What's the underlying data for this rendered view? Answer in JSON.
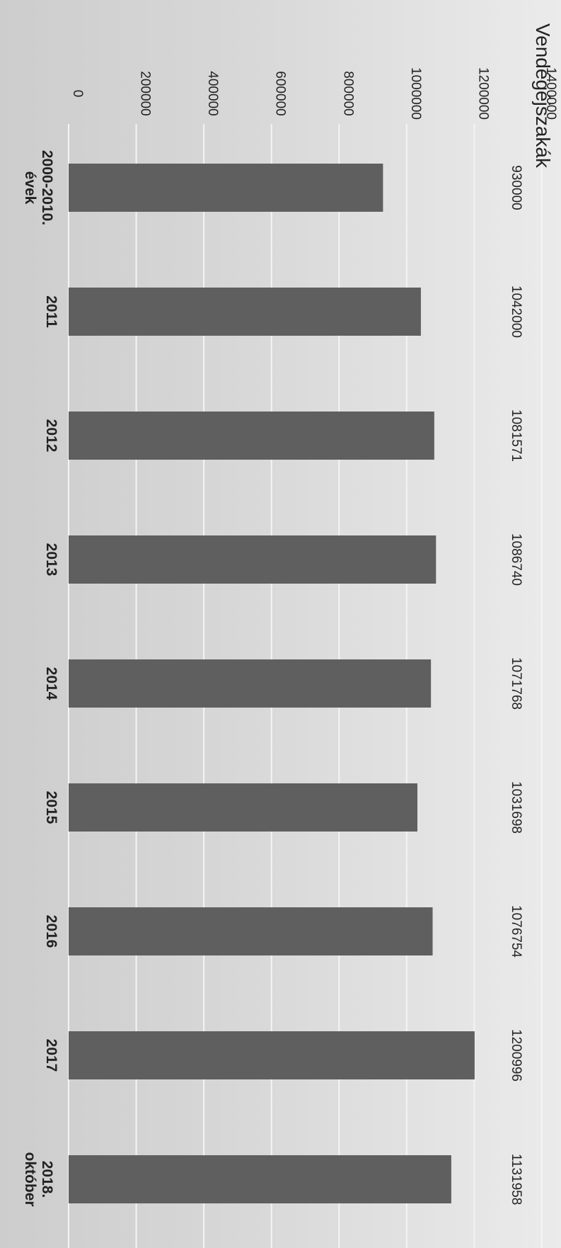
{
  "chart_data": {
    "type": "bar",
    "orientation": "rotated-90-clockwise",
    "title": "Vendégéjszakák",
    "categories": [
      "2000-2010. évek",
      "2011",
      "2012",
      "2013",
      "2014",
      "2015",
      "2016",
      "2017",
      "2018. október"
    ],
    "category_lines": [
      [
        "2000-2010.",
        "évek"
      ],
      [
        "2011"
      ],
      [
        "2012"
      ],
      [
        "2013"
      ],
      [
        "2014"
      ],
      [
        "2015"
      ],
      [
        "2016"
      ],
      [
        "2017"
      ],
      [
        "2018.",
        "október"
      ]
    ],
    "values": [
      930000,
      1042000,
      1081571,
      1086740,
      1071768,
      1031698,
      1076754,
      1200996,
      1131958
    ],
    "data_labels": [
      "930000",
      "1042000",
      "1081571",
      "1086740",
      "1071768",
      "1031698",
      "1076754",
      "1200996",
      "1131958"
    ],
    "ylim": [
      0,
      1400000
    ],
    "yticks": [
      0,
      200000,
      400000,
      600000,
      800000,
      1000000,
      1200000,
      1400000
    ],
    "ytick_labels": [
      "0",
      "200000",
      "400000",
      "600000",
      "800000",
      "1000000",
      "1200000",
      "1400000"
    ],
    "grid": true,
    "bar_color": "#5f5f5f",
    "grid_color": "#f4f4f4",
    "xlabel": "",
    "ylabel": ""
  }
}
